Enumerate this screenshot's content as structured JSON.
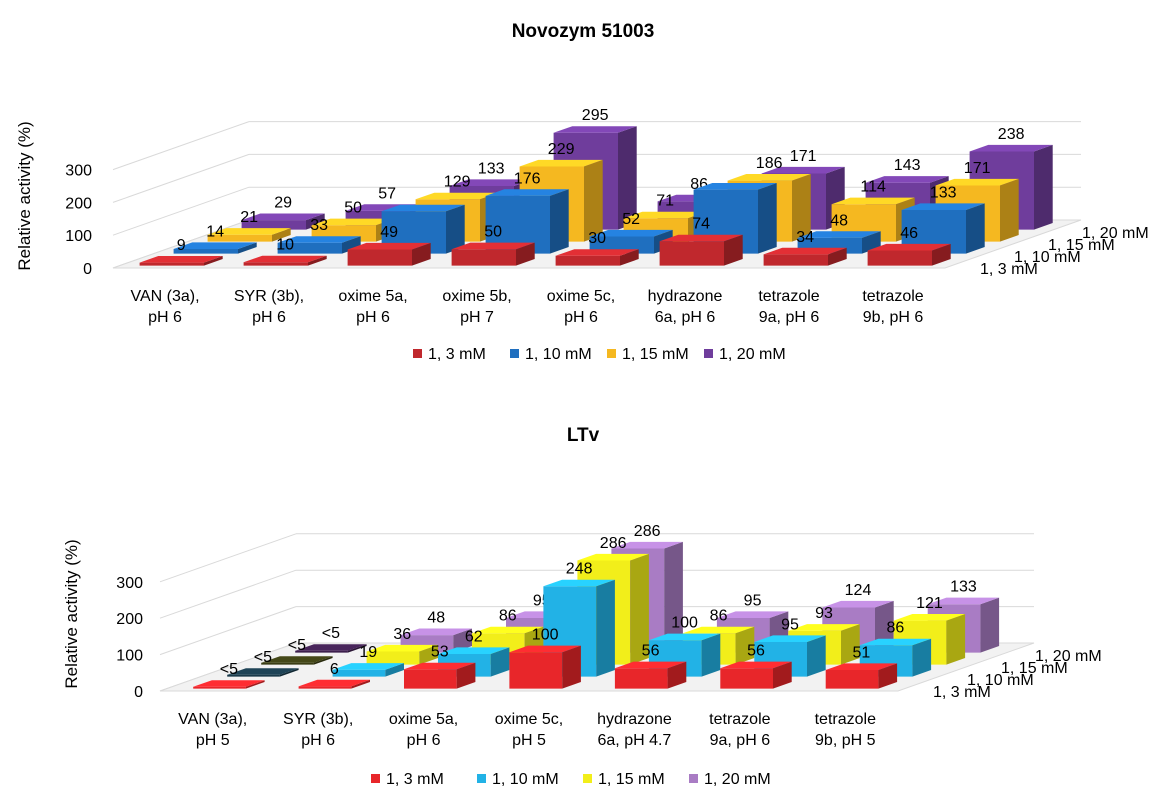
{
  "chart_data": [
    {
      "type": "bar",
      "title": "Novozym 51003",
      "ylabel": "Relative activity (%)",
      "xlabel": "",
      "ylim": [
        0,
        300
      ],
      "yticks": [
        "0",
        "100",
        "200",
        "300"
      ],
      "legend_position": "bottom",
      "categories": [
        [
          "VAN (3a),",
          "pH 6"
        ],
        [
          "SYR (3b),",
          "pH 6"
        ],
        [
          "oxime 5a,",
          "pH 6"
        ],
        [
          "oxime 5b,",
          "pH 7"
        ],
        [
          "oxime 5c,",
          "pH 6"
        ],
        [
          "hydrazone",
          "6a, pH 6"
        ],
        [
          "tetrazole",
          "9a, pH 6"
        ],
        [
          "tetrazole",
          "9b, pH 6"
        ]
      ],
      "series": [
        {
          "name": "1, 3 mM",
          "color": "#c0282d",
          "values": [
            9,
            10,
            49,
            50,
            30,
            74,
            34,
            46
          ],
          "labels": [
            "9",
            "10",
            "49",
            "50",
            "30",
            "74",
            "34",
            "46"
          ]
        },
        {
          "name": "1, 10 mM",
          "color": "#1f6fbf",
          "values": [
            14,
            33,
            129,
            176,
            52,
            195,
            48,
            133
          ],
          "labels": [
            "14",
            "33",
            "",
            "176",
            "52",
            "",
            "48",
            "133"
          ]
        },
        {
          "name": "1, 15 mM",
          "color": "#f5b820",
          "values": [
            21,
            50,
            129,
            229,
            71,
            186,
            114,
            171
          ],
          "labels": [
            "21",
            "50",
            "129",
            "229",
            "71",
            "186",
            "114",
            "171"
          ]
        },
        {
          "name": "1, 20 mM",
          "color": "#6f3d9c",
          "values": [
            29,
            57,
            133,
            295,
            86,
            171,
            143,
            238
          ],
          "labels": [
            "29",
            "57",
            "133",
            "295",
            "86",
            "171",
            "143",
            "238"
          ]
        }
      ]
    },
    {
      "type": "bar",
      "title": "LTv",
      "ylabel": "Relative activity (%)",
      "xlabel": "",
      "ylim": [
        0,
        300
      ],
      "yticks": [
        "0",
        "100",
        "200",
        "300"
      ],
      "legend_position": "bottom",
      "categories": [
        [
          "VAN (3a),",
          "pH 5"
        ],
        [
          "SYR (3b),",
          "pH 6"
        ],
        [
          "oxime 5a,",
          "pH 6"
        ],
        [
          "oxime 5c,",
          "pH 5"
        ],
        [
          "hydrazone",
          "6a, pH 4.7"
        ],
        [
          "tetrazole",
          "9a, pH 6"
        ],
        [
          "tetrazole",
          "9b, pH 5"
        ]
      ],
      "series": [
        {
          "name": "1, 3 mM",
          "color": "#e8262a",
          "values": [
            5,
            6,
            53,
            100,
            56,
            56,
            51
          ],
          "labels": [
            "<5",
            "6",
            "53",
            "100",
            "56",
            "56",
            "51"
          ]
        },
        {
          "name": "1, 10 mM",
          "color": "#22b2e6",
          "values": [
            5,
            19,
            62,
            248,
            100,
            95,
            86
          ],
          "labels": [
            "<5",
            "19",
            "62",
            "248",
            "100",
            "95",
            "86"
          ]
        },
        {
          "name": "1, 15 mM",
          "color": "#f2ee1a",
          "values": [
            5,
            36,
            86,
            286,
            86,
            93,
            121
          ],
          "labels": [
            "<5",
            "36",
            "86",
            "286",
            "86",
            "93",
            "121"
          ]
        },
        {
          "name": "1, 20 mM",
          "color": "#a97cc4",
          "values": [
            5,
            48,
            95,
            286,
            95,
            124,
            133
          ],
          "labels": [
            "<5",
            "48",
            "95",
            "286",
            "95",
            "124",
            "133"
          ]
        }
      ],
      "special_colors": {
        "1,0": "#1a3a4a",
        "2,0": "#3a3d14",
        "3,0": "#3d1f4d"
      }
    }
  ]
}
